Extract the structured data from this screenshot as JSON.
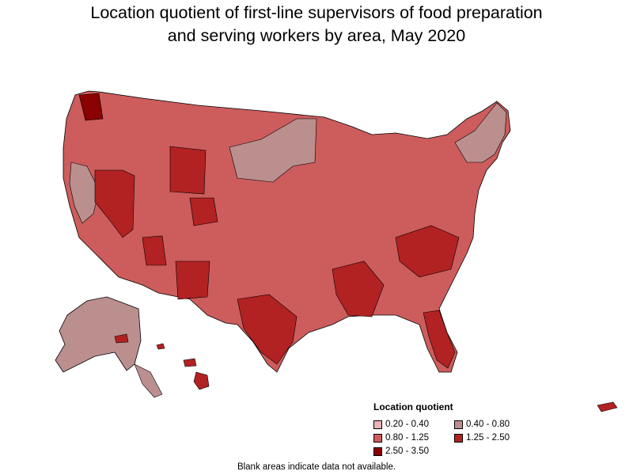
{
  "title_line1": "Location quotient of first-line supervisors of food preparation",
  "title_line2": "and serving workers by area, May 2020",
  "legend": {
    "title": "Location quotient",
    "items": [
      {
        "label": "0.20 - 0.40",
        "color": "#e8b4b8"
      },
      {
        "label": "0.40 - 0.80",
        "color": "#bc8f8f"
      },
      {
        "label": "0.80 - 1.25",
        "color": "#cd5c5c"
      },
      {
        "label": "1.25 - 2.50",
        "color": "#b22222"
      },
      {
        "label": "2.50 - 3.50",
        "color": "#8b0000"
      }
    ]
  },
  "footnote": "Blank areas indicate data not available.",
  "colors": {
    "low": "#e8b4b8",
    "mid_low": "#bc8f8f",
    "mid": "#cd5c5c",
    "high": "#b22222",
    "very_high": "#8b0000",
    "border": "#000000"
  }
}
